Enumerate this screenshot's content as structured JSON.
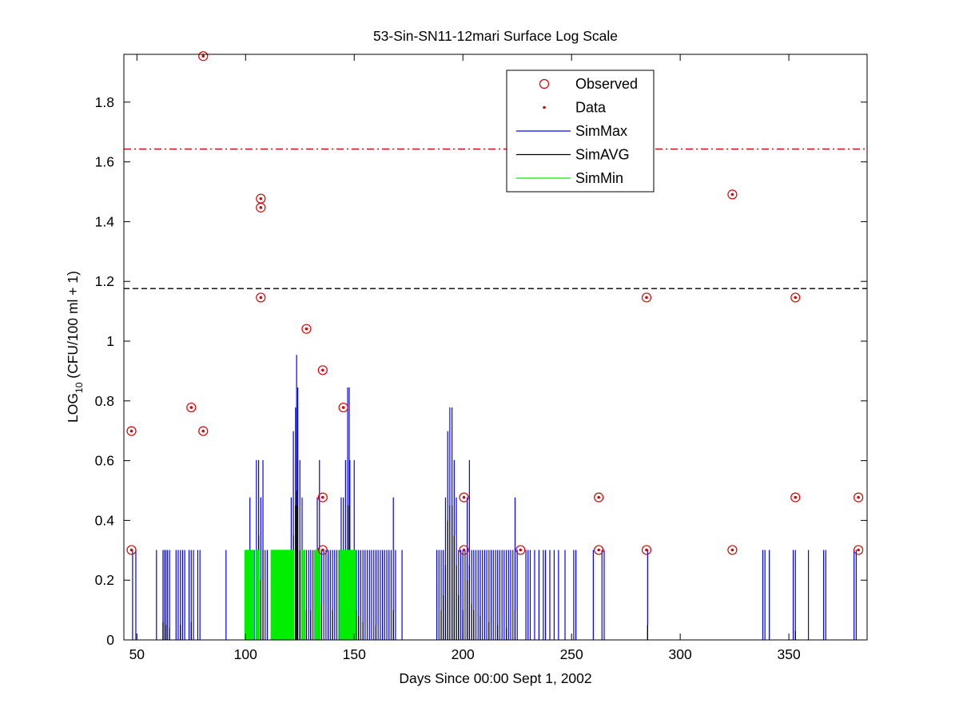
{
  "chart_data": {
    "type": "line",
    "title": "53-Sin-SN11-12mari Surface Log Scale",
    "xlabel": "Days Since 00:00 Sept 1, 2002",
    "ylabel_main": "LOG",
    "ylabel_sub": "10",
    "ylabel_rest": " (CFU/100 ml + 1)",
    "xlim": [
      44,
      386
    ],
    "ylim": [
      0,
      1.96
    ],
    "xticks": [
      50,
      100,
      150,
      200,
      250,
      300,
      350
    ],
    "xtick_labels": [
      "50",
      "100",
      "150",
      "200",
      "250",
      "300",
      "350"
    ],
    "yticks": [
      0,
      0.2,
      0.4,
      0.6,
      0.8,
      1,
      1.2,
      1.4,
      1.6,
      1.8
    ],
    "ytick_labels": [
      "0",
      "0.2",
      "0.4",
      "0.6",
      "0.8",
      "1",
      "1.2",
      "1.4",
      "1.6",
      "1.8"
    ],
    "reference_lines": [
      {
        "y": 1.643,
        "color": "#cc0000",
        "style": "dashdot"
      },
      {
        "y": 1.176,
        "color": "#000000",
        "style": "dashed"
      }
    ],
    "legend": {
      "position": "top-center",
      "entries": [
        {
          "label": "Observed",
          "marker": "circle",
          "color": "#dd0000"
        },
        {
          "label": "Data",
          "marker": "dot",
          "color": "#dd0000"
        },
        {
          "label": "SimMax",
          "marker": "line",
          "color": "#0000ff"
        },
        {
          "label": "SimAVG",
          "marker": "line",
          "color": "#000000"
        },
        {
          "label": "SimMin",
          "marker": "line",
          "color": "#00ee00"
        }
      ]
    },
    "observed": [
      [
        47.5,
        0.301
      ],
      [
        47.5,
        0.699
      ],
      [
        75,
        0.778
      ],
      [
        80.5,
        0.699
      ],
      [
        80.5,
        1.954
      ],
      [
        107,
        1.477
      ],
      [
        107,
        1.447
      ],
      [
        107,
        1.146
      ],
      [
        128,
        1.041
      ],
      [
        135.5,
        0.903
      ],
      [
        135.5,
        0.477
      ],
      [
        135.5,
        0.301
      ],
      [
        145,
        0.778
      ],
      [
        200.5,
        0.477
      ],
      [
        200.5,
        0.301
      ],
      [
        226.5,
        0.301
      ],
      [
        262.5,
        0.477
      ],
      [
        262.5,
        0.301
      ],
      [
        284.5,
        1.146
      ],
      [
        284.5,
        0.301
      ],
      [
        324,
        1.491
      ],
      [
        324,
        0.301
      ],
      [
        353,
        1.146
      ],
      [
        353,
        0.477
      ],
      [
        382,
        0.477
      ],
      [
        382,
        0.301
      ]
    ],
    "sim_max": [
      [
        48,
        0.301
      ],
      [
        49.5,
        0.301
      ],
      [
        59,
        0.301
      ],
      [
        62,
        0.301
      ],
      [
        62.7,
        0.301
      ],
      [
        63.4,
        0.301
      ],
      [
        64.1,
        0.301
      ],
      [
        65,
        0.301
      ],
      [
        68,
        0.301
      ],
      [
        69,
        0.301
      ],
      [
        70,
        0.301
      ],
      [
        71,
        0.301
      ],
      [
        72,
        0.301
      ],
      [
        74,
        0.301
      ],
      [
        75,
        0.301
      ],
      [
        76,
        0.301
      ],
      [
        78,
        0.301
      ],
      [
        79,
        0.301
      ],
      [
        91,
        0.301
      ],
      [
        100,
        0.301
      ],
      [
        101,
        0.301
      ],
      [
        102,
        0.477
      ],
      [
        103,
        0.301
      ],
      [
        104,
        0.301
      ],
      [
        105,
        0.602
      ],
      [
        106,
        0.602
      ],
      [
        107,
        0.477
      ],
      [
        108,
        0.602
      ],
      [
        109,
        0.301
      ],
      [
        110,
        0.301
      ],
      [
        112,
        0.301
      ],
      [
        113,
        0.301
      ],
      [
        114,
        0.301
      ],
      [
        115,
        0.301
      ],
      [
        116,
        0.301
      ],
      [
        117,
        0.301
      ],
      [
        118,
        0.301
      ],
      [
        119,
        0.301
      ],
      [
        120,
        0.301
      ],
      [
        121,
        0.477
      ],
      [
        122,
        0.699
      ],
      [
        123,
        0.778
      ],
      [
        123.5,
        0.954
      ],
      [
        124,
        0.845
      ],
      [
        125,
        0.602
      ],
      [
        126,
        0.477
      ],
      [
        127,
        0.301
      ],
      [
        128,
        0.301
      ],
      [
        129,
        0.301
      ],
      [
        130,
        0.301
      ],
      [
        131,
        0.301
      ],
      [
        132,
        0.301
      ],
      [
        133,
        0.477
      ],
      [
        134,
        0.602
      ],
      [
        135,
        0.301
      ],
      [
        136,
        0.301
      ],
      [
        137,
        0.301
      ],
      [
        138,
        0.301
      ],
      [
        139,
        0.301
      ],
      [
        140,
        0.301
      ],
      [
        141,
        0.301
      ],
      [
        142,
        0.301
      ],
      [
        143,
        0.301
      ],
      [
        144,
        0.477
      ],
      [
        145,
        0.477
      ],
      [
        146,
        0.602
      ],
      [
        147,
        0.845
      ],
      [
        147.7,
        0.845
      ],
      [
        148,
        0.602
      ],
      [
        149,
        0.301
      ],
      [
        150,
        0.602
      ],
      [
        151,
        0.301
      ],
      [
        152,
        0.301
      ],
      [
        153,
        0.301
      ],
      [
        154,
        0.301
      ],
      [
        155,
        0.301
      ],
      [
        156,
        0.301
      ],
      [
        157,
        0.301
      ],
      [
        158,
        0.301
      ],
      [
        159,
        0.301
      ],
      [
        160,
        0.301
      ],
      [
        161,
        0.301
      ],
      [
        162,
        0.301
      ],
      [
        163,
        0.301
      ],
      [
        164,
        0.301
      ],
      [
        165,
        0.301
      ],
      [
        166,
        0.301
      ],
      [
        167,
        0.301
      ],
      [
        168,
        0.477
      ],
      [
        169,
        0.301
      ],
      [
        172,
        0.301
      ],
      [
        188,
        0.301
      ],
      [
        189,
        0.301
      ],
      [
        190,
        0.301
      ],
      [
        191,
        0.301
      ],
      [
        192,
        0.477
      ],
      [
        193,
        0.699
      ],
      [
        194,
        0.778
      ],
      [
        195,
        0.778
      ],
      [
        196,
        0.602
      ],
      [
        197,
        0.477
      ],
      [
        198,
        0.301
      ],
      [
        199,
        0.301
      ],
      [
        200,
        0.301
      ],
      [
        201,
        0.301
      ],
      [
        202,
        0.477
      ],
      [
        203,
        0.602
      ],
      [
        204,
        0.301
      ],
      [
        205,
        0.301
      ],
      [
        206,
        0.301
      ],
      [
        207,
        0.301
      ],
      [
        208,
        0.301
      ],
      [
        209,
        0.301
      ],
      [
        210,
        0.301
      ],
      [
        211,
        0.301
      ],
      [
        212,
        0.301
      ],
      [
        213,
        0.301
      ],
      [
        214,
        0.301
      ],
      [
        215,
        0.301
      ],
      [
        216,
        0.301
      ],
      [
        217,
        0.301
      ],
      [
        218,
        0.301
      ],
      [
        219,
        0.301
      ],
      [
        220,
        0.301
      ],
      [
        221,
        0.301
      ],
      [
        222,
        0.301
      ],
      [
        223,
        0.301
      ],
      [
        224,
        0.477
      ],
      [
        225,
        0.301
      ],
      [
        229,
        0.301
      ],
      [
        230,
        0.301
      ],
      [
        231,
        0.301
      ],
      [
        233,
        0.301
      ],
      [
        235,
        0.301
      ],
      [
        237,
        0.301
      ],
      [
        238,
        0.301
      ],
      [
        240,
        0.301
      ],
      [
        242,
        0.301
      ],
      [
        244,
        0.301
      ],
      [
        247,
        0.301
      ],
      [
        251,
        0.301
      ],
      [
        252,
        0.301
      ],
      [
        260,
        0.301
      ],
      [
        264,
        0.301
      ],
      [
        265,
        0.301
      ],
      [
        285,
        0.301
      ],
      [
        338,
        0.301
      ],
      [
        339,
        0.301
      ],
      [
        341,
        0.301
      ],
      [
        352,
        0.301
      ],
      [
        353,
        0.301
      ],
      [
        359,
        0.301
      ],
      [
        366,
        0.301
      ],
      [
        367,
        0.301
      ],
      [
        380,
        0.301
      ],
      [
        381,
        0.301
      ]
    ],
    "sim_avg": [
      [
        62,
        0.06
      ],
      [
        63.4,
        0.05
      ],
      [
        65,
        0.04
      ],
      [
        70,
        0.05
      ],
      [
        75,
        0.06
      ],
      [
        100,
        0.1
      ],
      [
        101,
        0.12
      ],
      [
        102,
        0.2
      ],
      [
        105,
        0.3
      ],
      [
        106,
        0.35
      ],
      [
        107,
        0.2
      ],
      [
        108,
        0.3
      ],
      [
        112,
        0.15
      ],
      [
        113,
        0.12
      ],
      [
        114,
        0.12
      ],
      [
        115,
        0.1
      ],
      [
        116,
        0.12
      ],
      [
        117,
        0.1
      ],
      [
        118,
        0.12
      ],
      [
        119,
        0.15
      ],
      [
        120,
        0.12
      ],
      [
        121,
        0.2
      ],
      [
        122,
        0.35
      ],
      [
        123,
        0.45
      ],
      [
        123.5,
        0.5
      ],
      [
        124,
        0.45
      ],
      [
        125,
        0.3
      ],
      [
        126,
        0.2
      ],
      [
        127,
        0.12
      ],
      [
        128,
        0.1
      ],
      [
        130,
        0.1
      ],
      [
        132,
        0.12
      ],
      [
        133,
        0.2
      ],
      [
        134,
        0.25
      ],
      [
        135,
        0.12
      ],
      [
        140,
        0.1
      ],
      [
        144,
        0.2
      ],
      [
        145,
        0.25
      ],
      [
        146,
        0.3
      ],
      [
        147,
        0.45
      ],
      [
        147.7,
        0.45
      ],
      [
        148,
        0.3
      ],
      [
        150,
        0.3
      ],
      [
        151,
        0.1
      ],
      [
        152,
        0.08
      ],
      [
        154,
        0.06
      ],
      [
        160,
        0.05
      ],
      [
        168,
        0.1
      ],
      [
        190,
        0.1
      ],
      [
        191,
        0.15
      ],
      [
        192,
        0.25
      ],
      [
        193,
        0.4
      ],
      [
        194,
        0.45
      ],
      [
        195,
        0.45
      ],
      [
        196,
        0.35
      ],
      [
        197,
        0.25
      ],
      [
        198,
        0.15
      ],
      [
        200,
        0.1
      ],
      [
        202,
        0.2
      ],
      [
        203,
        0.25
      ],
      [
        204,
        0.12
      ],
      [
        205,
        0.1
      ],
      [
        208,
        0.08
      ],
      [
        212,
        0.06
      ],
      [
        216,
        0.05
      ],
      [
        220,
        0.04
      ],
      [
        224,
        0.1
      ],
      [
        285,
        0.05
      ],
      [
        353,
        0.03
      ]
    ],
    "sim_min": [
      [
        100,
        0.301
      ],
      [
        100.5,
        0.301
      ],
      [
        101,
        0.301
      ],
      [
        101.5,
        0.301
      ],
      [
        102,
        0.301
      ],
      [
        102.5,
        0.301
      ],
      [
        103,
        0.301
      ],
      [
        103.5,
        0.301
      ],
      [
        105,
        0.301
      ],
      [
        105.5,
        0.301
      ],
      [
        106,
        0.301
      ],
      [
        112,
        0.301
      ],
      [
        112.4,
        0.301
      ],
      [
        112.8,
        0.301
      ],
      [
        113.2,
        0.301
      ],
      [
        113.6,
        0.301
      ],
      [
        114,
        0.301
      ],
      [
        114.4,
        0.301
      ],
      [
        114.8,
        0.301
      ],
      [
        115.2,
        0.301
      ],
      [
        115.6,
        0.301
      ],
      [
        116,
        0.301
      ],
      [
        116.4,
        0.301
      ],
      [
        116.8,
        0.301
      ],
      [
        117.2,
        0.301
      ],
      [
        117.6,
        0.301
      ],
      [
        118,
        0.301
      ],
      [
        118.4,
        0.301
      ],
      [
        118.8,
        0.301
      ],
      [
        119.2,
        0.301
      ],
      [
        119.6,
        0.301
      ],
      [
        120,
        0.301
      ],
      [
        120.4,
        0.301
      ],
      [
        120.8,
        0.301
      ],
      [
        121.2,
        0.301
      ],
      [
        121.6,
        0.301
      ],
      [
        122,
        0.301
      ],
      [
        126,
        0.301
      ],
      [
        127,
        0.301
      ],
      [
        132,
        0.301
      ],
      [
        132.5,
        0.301
      ],
      [
        133,
        0.301
      ],
      [
        133.5,
        0.301
      ],
      [
        134,
        0.301
      ],
      [
        143.5,
        0.301
      ],
      [
        144,
        0.301
      ],
      [
        144.4,
        0.301
      ],
      [
        144.8,
        0.301
      ],
      [
        145.2,
        0.301
      ],
      [
        145.6,
        0.301
      ],
      [
        146,
        0.301
      ],
      [
        146.4,
        0.301
      ],
      [
        146.8,
        0.301
      ],
      [
        147.2,
        0.301
      ],
      [
        147.6,
        0.301
      ],
      [
        148,
        0.301
      ],
      [
        148.4,
        0.301
      ],
      [
        148.8,
        0.301
      ],
      [
        149.2,
        0.301
      ],
      [
        149.6,
        0.301
      ],
      [
        150,
        0.301
      ],
      [
        150.4,
        0.301
      ]
    ]
  }
}
